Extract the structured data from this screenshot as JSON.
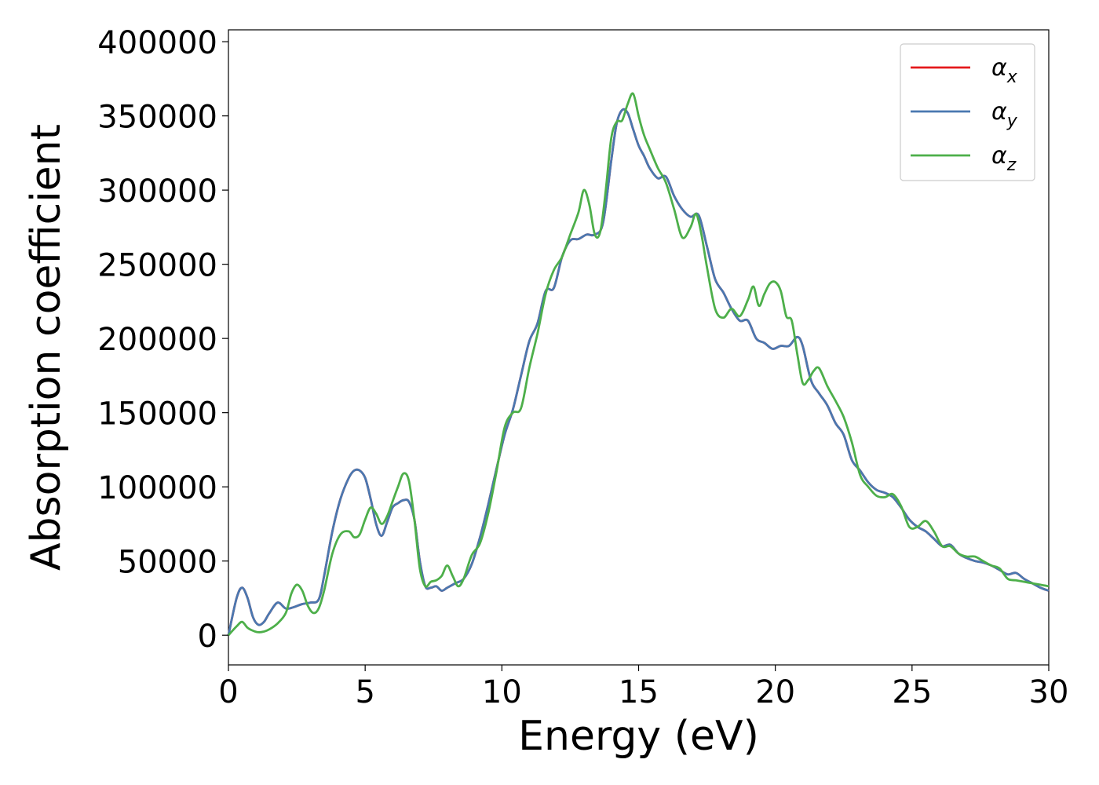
{
  "chart_data": {
    "type": "line",
    "xlabel": "Energy (eV)",
    "ylabel": "Absorption coefficient",
    "xlim": [
      0,
      30
    ],
    "ylim": [
      -20000,
      408000
    ],
    "xticks": [
      0,
      5,
      10,
      15,
      20,
      25,
      30
    ],
    "yticks": [
      0,
      50000,
      100000,
      150000,
      200000,
      250000,
      300000,
      350000,
      400000
    ],
    "xtick_labels": [
      "0",
      "5",
      "10",
      "15",
      "20",
      "25",
      "30"
    ],
    "ytick_labels": [
      "0",
      "50000",
      "100000",
      "150000",
      "200000",
      "250000",
      "300000",
      "350000",
      "400000"
    ],
    "grid": false,
    "legend_position": "top-right",
    "series": [
      {
        "name": "α",
        "subscript": "x",
        "color": "#e41a1c",
        "x": [
          0,
          0.3,
          0.5,
          0.7,
          0.9,
          1.1,
          1.3,
          1.5,
          1.8,
          2.1,
          2.4,
          2.7,
          3.0,
          3.3,
          3.5,
          3.8,
          4.1,
          4.4,
          4.6,
          4.8,
          5.0,
          5.2,
          5.4,
          5.6,
          5.8,
          6.0,
          6.2,
          6.4,
          6.6,
          6.8,
          7.0,
          7.2,
          7.4,
          7.6,
          7.8,
          8.0,
          8.3,
          8.6,
          8.9,
          9.2,
          9.5,
          9.8,
          10.1,
          10.4,
          10.7,
          11.0,
          11.3,
          11.6,
          11.9,
          12.2,
          12.5,
          12.8,
          13.1,
          13.4,
          13.7,
          14.0,
          14.2,
          14.4,
          14.6,
          14.8,
          15.0,
          15.2,
          15.4,
          15.7,
          16.0,
          16.3,
          16.6,
          16.9,
          17.2,
          17.5,
          17.8,
          18.1,
          18.4,
          18.7,
          19.0,
          19.3,
          19.6,
          19.9,
          20.2,
          20.5,
          20.8,
          21.0,
          21.3,
          21.6,
          21.9,
          22.2,
          22.5,
          22.8,
          23.1,
          23.4,
          23.7,
          24.0,
          24.3,
          24.6,
          24.9,
          25.2,
          25.5,
          25.8,
          26.1,
          26.4,
          26.7,
          27.0,
          27.3,
          27.6,
          27.9,
          28.2,
          28.5,
          28.8,
          29.1,
          29.4,
          29.7,
          30.0
        ],
        "values": [
          0,
          25000,
          32000,
          25000,
          12000,
          7000,
          9000,
          15000,
          22000,
          18000,
          19000,
          21000,
          22000,
          24000,
          40000,
          70000,
          92000,
          106000,
          111000,
          111000,
          106000,
          92000,
          75000,
          67000,
          76000,
          86000,
          89000,
          91000,
          90000,
          78000,
          50000,
          33000,
          32000,
          33000,
          30000,
          32000,
          35000,
          38000,
          48000,
          66000,
          88000,
          112000,
          135000,
          152000,
          175000,
          198000,
          210000,
          232000,
          234000,
          255000,
          266000,
          267000,
          270000,
          270000,
          278000,
          320000,
          345000,
          354000,
          352000,
          341000,
          330000,
          323000,
          315000,
          308000,
          309000,
          296000,
          287000,
          282000,
          283000,
          262000,
          240000,
          231000,
          220000,
          212000,
          212000,
          200000,
          197000,
          193000,
          195000,
          195000,
          201000,
          195000,
          172000,
          163000,
          155000,
          143000,
          135000,
          118000,
          111000,
          103000,
          98000,
          96000,
          93000,
          86000,
          78000,
          73000,
          70000,
          65000,
          60000,
          61000,
          55000,
          52000,
          50000,
          49000,
          47000,
          44000,
          41000,
          42000,
          38000,
          35000,
          32000,
          30000
        ]
      },
      {
        "name": "α",
        "subscript": "y",
        "color": "#4a78b0",
        "x": [
          0,
          0.3,
          0.5,
          0.7,
          0.9,
          1.1,
          1.3,
          1.5,
          1.8,
          2.1,
          2.4,
          2.7,
          3.0,
          3.3,
          3.5,
          3.8,
          4.1,
          4.4,
          4.6,
          4.8,
          5.0,
          5.2,
          5.4,
          5.6,
          5.8,
          6.0,
          6.2,
          6.4,
          6.6,
          6.8,
          7.0,
          7.2,
          7.4,
          7.6,
          7.8,
          8.0,
          8.3,
          8.6,
          8.9,
          9.2,
          9.5,
          9.8,
          10.1,
          10.4,
          10.7,
          11.0,
          11.3,
          11.6,
          11.9,
          12.2,
          12.5,
          12.8,
          13.1,
          13.4,
          13.7,
          14.0,
          14.2,
          14.4,
          14.6,
          14.8,
          15.0,
          15.2,
          15.4,
          15.7,
          16.0,
          16.3,
          16.6,
          16.9,
          17.2,
          17.5,
          17.8,
          18.1,
          18.4,
          18.7,
          19.0,
          19.3,
          19.6,
          19.9,
          20.2,
          20.5,
          20.8,
          21.0,
          21.3,
          21.6,
          21.9,
          22.2,
          22.5,
          22.8,
          23.1,
          23.4,
          23.7,
          24.0,
          24.3,
          24.6,
          24.9,
          25.2,
          25.5,
          25.8,
          26.1,
          26.4,
          26.7,
          27.0,
          27.3,
          27.6,
          27.9,
          28.2,
          28.5,
          28.8,
          29.1,
          29.4,
          29.7,
          30.0
        ],
        "values": [
          0,
          25000,
          32000,
          25000,
          12000,
          7000,
          9000,
          15000,
          22000,
          18000,
          19000,
          21000,
          22000,
          24000,
          40000,
          70000,
          92000,
          106000,
          111000,
          111000,
          106000,
          92000,
          75000,
          67000,
          76000,
          86000,
          89000,
          91000,
          90000,
          78000,
          50000,
          33000,
          32000,
          33000,
          30000,
          32000,
          35000,
          38000,
          48000,
          66000,
          88000,
          112000,
          135000,
          152000,
          175000,
          198000,
          210000,
          232000,
          234000,
          255000,
          266000,
          267000,
          270000,
          270000,
          278000,
          320000,
          345000,
          354000,
          352000,
          341000,
          330000,
          323000,
          315000,
          308000,
          309000,
          296000,
          287000,
          282000,
          283000,
          262000,
          240000,
          231000,
          220000,
          212000,
          212000,
          200000,
          197000,
          193000,
          195000,
          195000,
          201000,
          195000,
          172000,
          163000,
          155000,
          143000,
          135000,
          118000,
          111000,
          103000,
          98000,
          96000,
          93000,
          86000,
          78000,
          73000,
          70000,
          65000,
          60000,
          61000,
          55000,
          52000,
          50000,
          49000,
          47000,
          44000,
          41000,
          42000,
          38000,
          35000,
          32000,
          30000
        ]
      },
      {
        "name": "α",
        "subscript": "z",
        "color": "#4daf4a",
        "x": [
          0,
          0.3,
          0.5,
          0.7,
          0.9,
          1.1,
          1.3,
          1.5,
          1.8,
          2.1,
          2.3,
          2.5,
          2.7,
          2.9,
          3.1,
          3.3,
          3.5,
          3.8,
          4.1,
          4.4,
          4.6,
          4.8,
          5.0,
          5.2,
          5.4,
          5.6,
          5.8,
          6.0,
          6.2,
          6.4,
          6.6,
          6.8,
          7.0,
          7.2,
          7.4,
          7.6,
          7.8,
          8.0,
          8.2,
          8.4,
          8.6,
          8.9,
          9.2,
          9.5,
          9.8,
          10.1,
          10.4,
          10.7,
          11.0,
          11.3,
          11.6,
          11.9,
          12.2,
          12.5,
          12.8,
          13.0,
          13.2,
          13.4,
          13.6,
          13.8,
          14.0,
          14.2,
          14.4,
          14.6,
          14.8,
          15.0,
          15.2,
          15.4,
          15.7,
          16.0,
          16.3,
          16.6,
          16.9,
          17.1,
          17.3,
          17.5,
          17.8,
          18.1,
          18.4,
          18.7,
          19.0,
          19.2,
          19.4,
          19.6,
          19.8,
          20.0,
          20.2,
          20.4,
          20.6,
          20.8,
          21.0,
          21.2,
          21.4,
          21.6,
          21.9,
          22.2,
          22.5,
          22.8,
          23.1,
          23.4,
          23.7,
          24.0,
          24.3,
          24.6,
          24.9,
          25.2,
          25.5,
          25.8,
          26.1,
          26.4,
          26.7,
          27.0,
          27.3,
          27.6,
          27.9,
          28.2,
          28.5,
          28.8,
          29.1,
          29.4,
          29.7,
          30.0
        ],
        "values": [
          0,
          6000,
          9000,
          5000,
          3000,
          2000,
          2500,
          4000,
          8000,
          15000,
          28000,
          34000,
          30000,
          20000,
          15000,
          18000,
          30000,
          55000,
          68000,
          70000,
          66000,
          68000,
          78000,
          86000,
          82000,
          75000,
          80000,
          90000,
          100000,
          109000,
          104000,
          78000,
          45000,
          33000,
          36000,
          37000,
          40000,
          47000,
          40000,
          33000,
          38000,
          54000,
          62000,
          82000,
          110000,
          140000,
          150000,
          153000,
          180000,
          203000,
          230000,
          246000,
          255000,
          270000,
          285000,
          300000,
          290000,
          270000,
          272000,
          300000,
          335000,
          346000,
          347000,
          358000,
          365000,
          350000,
          337000,
          328000,
          315000,
          305000,
          287000,
          268000,
          275000,
          284000,
          270000,
          248000,
          220000,
          214000,
          220000,
          215000,
          226000,
          235000,
          222000,
          230000,
          237000,
          238000,
          232000,
          215000,
          212000,
          190000,
          170000,
          172000,
          178000,
          180000,
          168000,
          158000,
          147000,
          130000,
          108000,
          100000,
          94000,
          93000,
          95000,
          87000,
          73000,
          73000,
          77000,
          70000,
          60000,
          60000,
          55000,
          53000,
          53000,
          50000,
          47000,
          45000,
          38000,
          37000,
          36000,
          35000,
          34000,
          33000
        ]
      }
    ]
  }
}
